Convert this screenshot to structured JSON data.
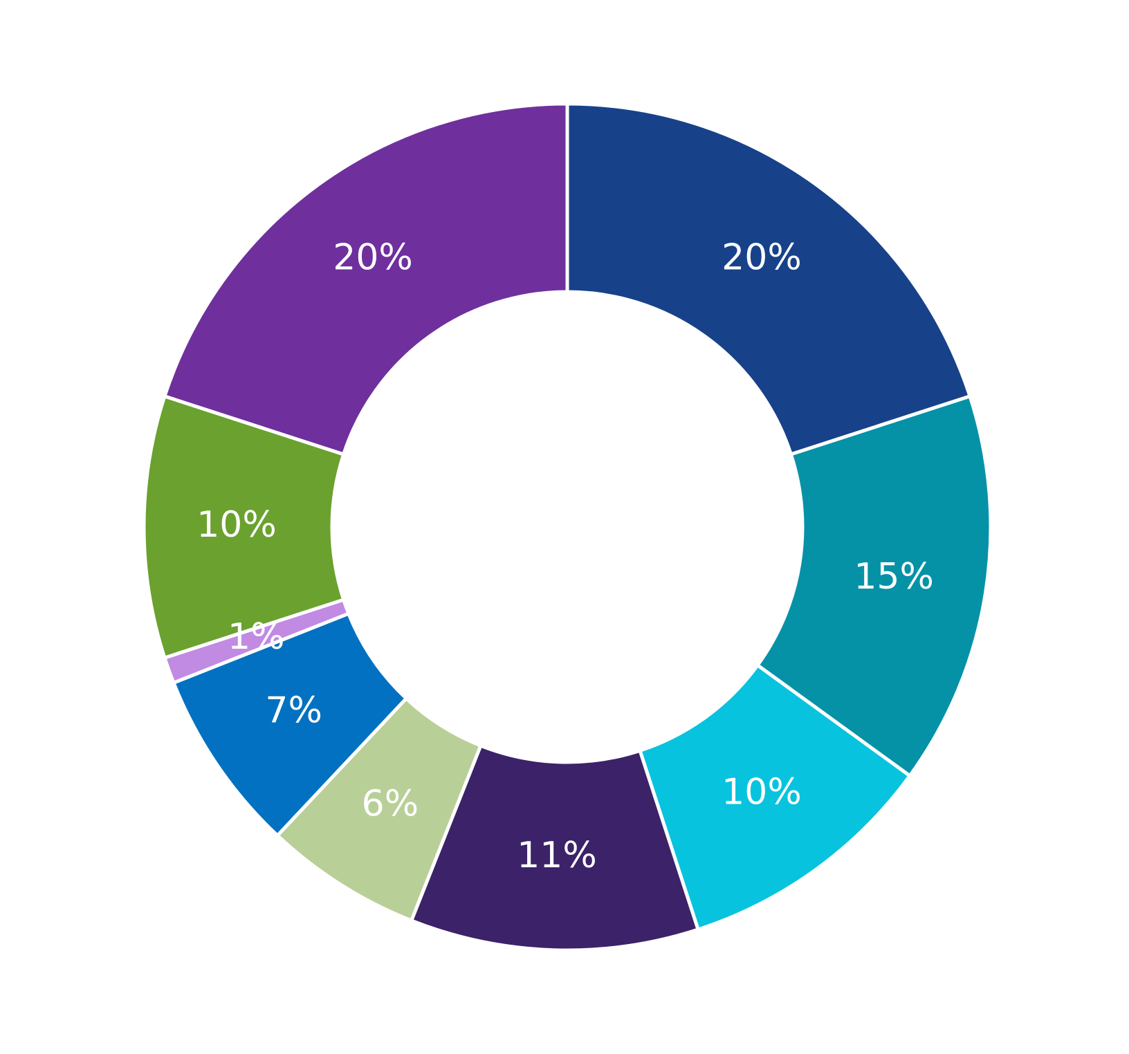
{
  "chart_data": {
    "type": "donut",
    "values": [
      20,
      15,
      10,
      11,
      6,
      7,
      1,
      10,
      20
    ],
    "value_labels": [
      "20%",
      "15%",
      "10%",
      "11%",
      "6%",
      "7%",
      "1%",
      "10%",
      "20%"
    ],
    "colors": [
      "#17428a",
      "#0592a7",
      "#08c3de",
      "#3c2268",
      "#b9cf98",
      "#0271c1",
      "#c18ae3",
      "#6ba12e",
      "#6f2f9d"
    ]
  }
}
